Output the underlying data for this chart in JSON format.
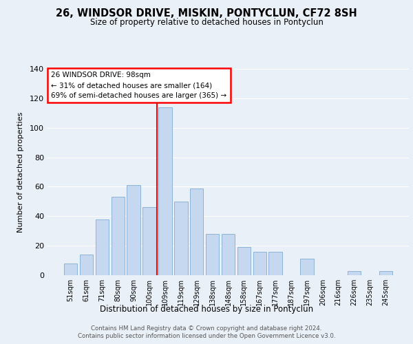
{
  "title": "26, WINDSOR DRIVE, MISKIN, PONTYCLUN, CF72 8SH",
  "subtitle": "Size of property relative to detached houses in Pontyclun",
  "xlabel": "Distribution of detached houses by size in Pontyclun",
  "ylabel": "Number of detached properties",
  "categories": [
    "51sqm",
    "61sqm",
    "71sqm",
    "80sqm",
    "90sqm",
    "100sqm",
    "109sqm",
    "119sqm",
    "129sqm",
    "138sqm",
    "148sqm",
    "158sqm",
    "167sqm",
    "177sqm",
    "187sqm",
    "197sqm",
    "206sqm",
    "216sqm",
    "226sqm",
    "235sqm",
    "245sqm"
  ],
  "values": [
    8,
    14,
    38,
    53,
    61,
    46,
    114,
    50,
    59,
    28,
    28,
    19,
    16,
    16,
    0,
    11,
    0,
    0,
    3,
    0,
    3
  ],
  "bar_color": "#c5d8f0",
  "bar_edge_color": "#8ab4d8",
  "red_line_x": 5,
  "annotation_title": "26 WINDSOR DRIVE: 98sqm",
  "annotation_line1": "← 31% of detached houses are smaller (164)",
  "annotation_line2": "69% of semi-detached houses are larger (365) →",
  "ylim": [
    0,
    140
  ],
  "yticks": [
    0,
    20,
    40,
    60,
    80,
    100,
    120,
    140
  ],
  "bg_color": "#eaf0f8",
  "plot_bg_color": "#eaf0f8",
  "footer1": "Contains HM Land Registry data © Crown copyright and database right 2024.",
  "footer2": "Contains public sector information licensed under the Open Government Licence v3.0."
}
